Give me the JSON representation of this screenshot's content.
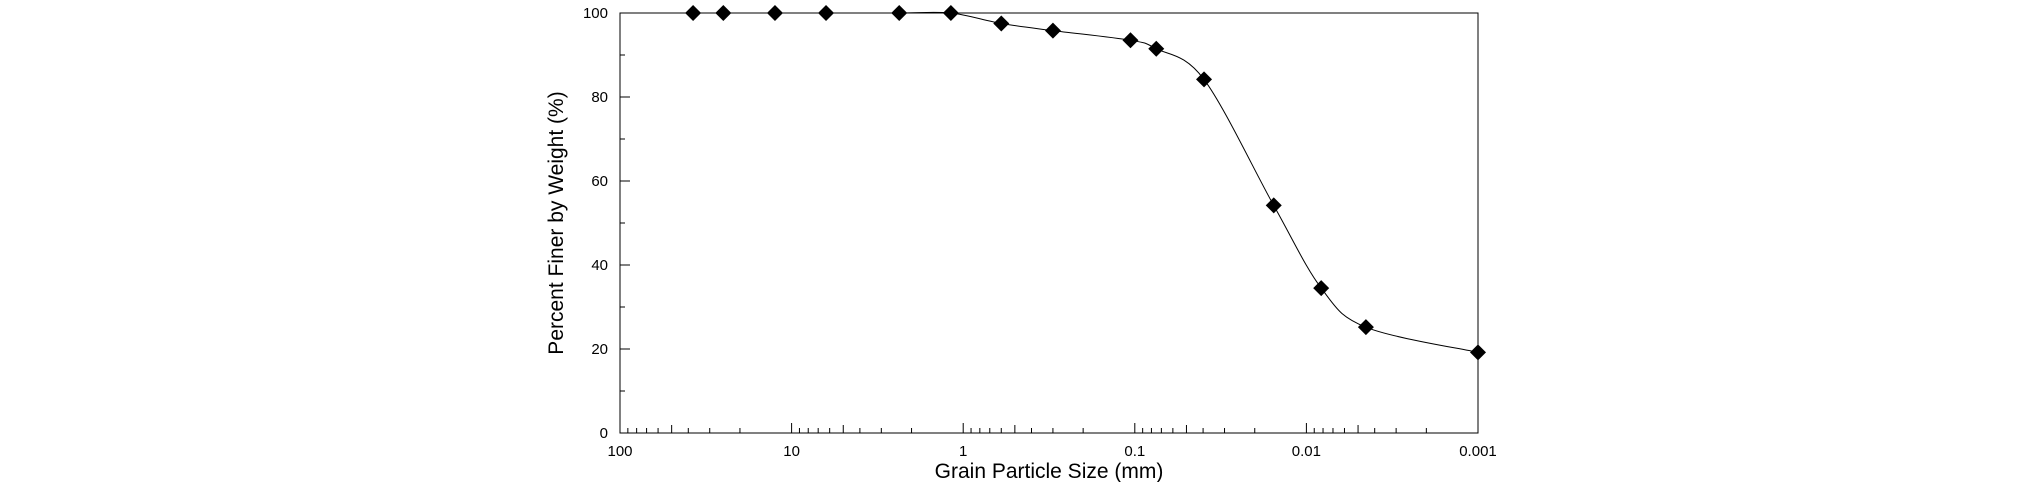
{
  "chart_data": {
    "type": "scatter",
    "title": "",
    "xlabel": "Grain Particle Size (mm)",
    "ylabel": "Percent Finer by Weight (%)",
    "x_scale": "log",
    "x_reversed": true,
    "xlim": [
      100,
      0.001
    ],
    "ylim": [
      0,
      100
    ],
    "x_ticks": [
      100,
      10,
      1,
      0.1,
      0.01,
      0.001
    ],
    "x_tick_labels": [
      "100",
      "10",
      "1",
      "0.1",
      "0.01",
      "0.001"
    ],
    "y_ticks": [
      0,
      20,
      40,
      60,
      80,
      100
    ],
    "y_tick_labels": [
      "0",
      "20",
      "40",
      "60",
      "80",
      "100"
    ],
    "grid": false,
    "marker": "diamond",
    "marker_color": "#000000",
    "line_color": "#000000",
    "series": [
      {
        "x": [
          37.5,
          25,
          12.5,
          6.3,
          2.36,
          1.18,
          0.6,
          0.3,
          0.106,
          0.075,
          0.0395,
          0.0155,
          0.0082,
          0.0045,
          0.001
        ],
        "y": [
          100,
          100,
          100,
          100,
          100,
          100,
          97.5,
          95.8,
          93.5,
          91.5,
          84.2,
          54.2,
          34.5,
          25.2,
          19.2
        ]
      }
    ]
  }
}
